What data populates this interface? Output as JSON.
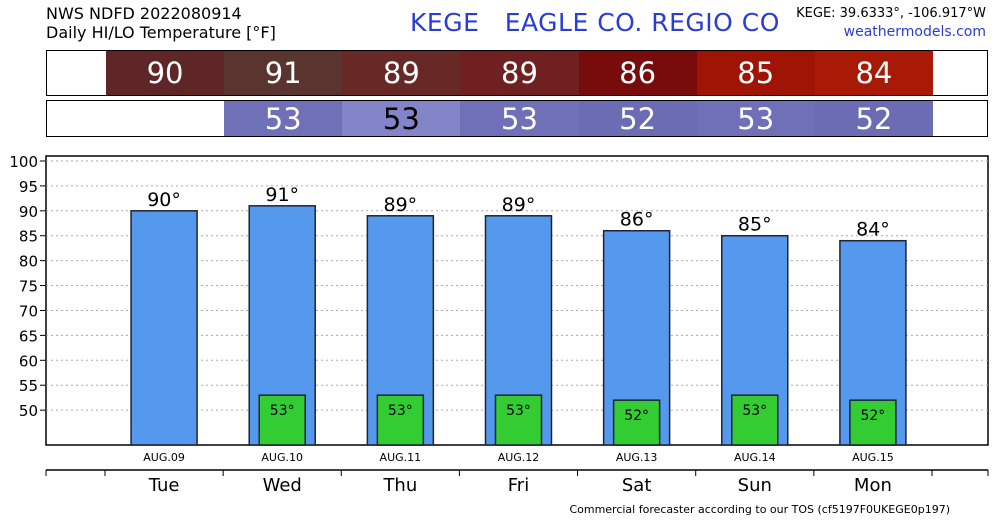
{
  "header": {
    "line1": "NWS NDFD 2022080914",
    "line2": "Daily HI/LO Temperature [°F]",
    "title": "KEGE   EAGLE CO. REGIO CO",
    "coords": "KEGE: 39.6333°, -106.917°W",
    "site": "weathermodels.com"
  },
  "strip_hi": [
    {
      "value": "90",
      "color": "#5e2626"
    },
    {
      "value": "91",
      "color": "#5a3530"
    },
    {
      "value": "89",
      "color": "#682826"
    },
    {
      "value": "89",
      "color": "#702020"
    },
    {
      "value": "86",
      "color": "#780c0c"
    },
    {
      "value": "85",
      "color": "#a01406"
    },
    {
      "value": "84",
      "color": "#a81a06"
    }
  ],
  "strip_lo": [
    {
      "value": "",
      "color": "#ffffff"
    },
    {
      "value": "53",
      "color": "#7070b8",
      "dark": false
    },
    {
      "value": "53",
      "color": "#8484c8",
      "dark": true
    },
    {
      "value": "53",
      "color": "#7070b8",
      "dark": false
    },
    {
      "value": "52",
      "color": "#6c6cb4",
      "dark": false
    },
    {
      "value": "53",
      "color": "#7070b8",
      "dark": false
    },
    {
      "value": "52",
      "color": "#6c6cb4",
      "dark": false
    }
  ],
  "chart_data": {
    "type": "bar",
    "categories": [
      "Tue",
      "Wed",
      "Thu",
      "Fri",
      "Sat",
      "Sun",
      "Mon"
    ],
    "dates": [
      "AUG.09",
      "AUG.10",
      "AUG.11",
      "AUG.12",
      "AUG.13",
      "AUG.14",
      "AUG.15"
    ],
    "series": [
      {
        "values": [
          90,
          91,
          89,
          89,
          86,
          85,
          84
        ],
        "color": "#5599ee"
      },
      {
        "values": [
          null,
          53,
          53,
          53,
          52,
          53,
          52
        ],
        "color": "#33cc33"
      }
    ],
    "high_labels": [
      "90°",
      "91°",
      "89°",
      "89°",
      "86°",
      "85°",
      "84°"
    ],
    "low_labels": [
      "",
      "53°",
      "53°",
      "53°",
      "52°",
      "53°",
      "52°"
    ],
    "yticks": [
      50,
      55,
      60,
      65,
      70,
      75,
      80,
      85,
      90,
      95,
      100
    ],
    "ylim": [
      43,
      101
    ],
    "grid": true
  },
  "footer": "Commercial forecaster according to our TOS (cf5197F0UKEGE0p197)"
}
